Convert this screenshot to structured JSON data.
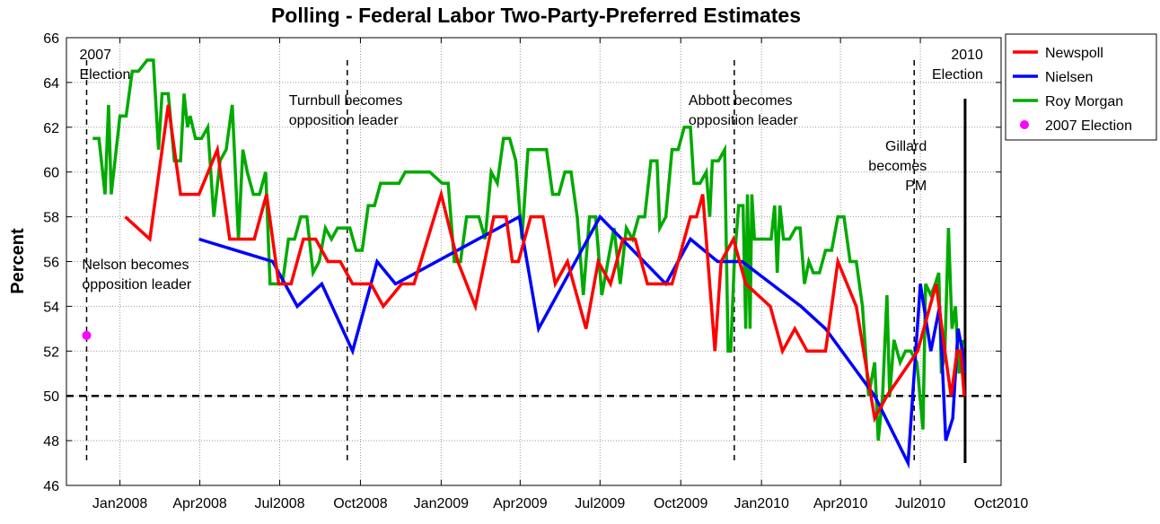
{
  "chart_data": {
    "type": "line",
    "title": "Polling - Federal Labor Two-Party-Preferred Estimates",
    "xlabel": "",
    "ylabel": "Percent",
    "xlim": [
      "2007-11-01",
      "2010-10-01"
    ],
    "ylim": [
      46,
      66
    ],
    "grid": true,
    "legend_position": "outside-top-right",
    "xticks": [
      {
        "date": "2008-01-01",
        "label": "Jan2008"
      },
      {
        "date": "2008-04-01",
        "label": "Apr2008"
      },
      {
        "date": "2008-07-01",
        "label": "Jul2008"
      },
      {
        "date": "2008-10-01",
        "label": "Oct2008"
      },
      {
        "date": "2009-01-01",
        "label": "Jan2009"
      },
      {
        "date": "2009-04-01",
        "label": "Apr2009"
      },
      {
        "date": "2009-07-01",
        "label": "Jul2009"
      },
      {
        "date": "2009-10-01",
        "label": "Oct2009"
      },
      {
        "date": "2010-01-01",
        "label": "Jan2010"
      },
      {
        "date": "2010-04-01",
        "label": "Apr2010"
      },
      {
        "date": "2010-07-01",
        "label": "Jul2010"
      },
      {
        "date": "2010-10-01",
        "label": "Oct2010"
      }
    ],
    "yticks": [
      46,
      48,
      50,
      52,
      54,
      56,
      58,
      60,
      62,
      64,
      66
    ],
    "reference_line": {
      "y": 50,
      "style": "dashed"
    },
    "colors": {
      "Newspoll": "#ff0000",
      "Nielsen": "#0000ff",
      "Roy Morgan": "#00aa00",
      "2007 Election": "#ff00ff"
    },
    "series": [
      {
        "name": "Newspoll",
        "points": [
          [
            "2008-01-07",
            58
          ],
          [
            "2008-02-04",
            57
          ],
          [
            "2008-02-25",
            63
          ],
          [
            "2008-03-10",
            59
          ],
          [
            "2008-03-31",
            59
          ],
          [
            "2008-04-21",
            61
          ],
          [
            "2008-05-05",
            57
          ],
          [
            "2008-06-02",
            57
          ],
          [
            "2008-06-16",
            59
          ],
          [
            "2008-06-30",
            55
          ],
          [
            "2008-07-14",
            55
          ],
          [
            "2008-07-28",
            57
          ],
          [
            "2008-08-11",
            57
          ],
          [
            "2008-08-25",
            56
          ],
          [
            "2008-09-08",
            56
          ],
          [
            "2008-09-22",
            55
          ],
          [
            "2008-10-13",
            55
          ],
          [
            "2008-10-27",
            54
          ],
          [
            "2008-11-17",
            55
          ],
          [
            "2008-12-01",
            55
          ],
          [
            "2009-01-01",
            59
          ],
          [
            "2009-01-20",
            56
          ],
          [
            "2009-02-09",
            54
          ],
          [
            "2009-03-02",
            58
          ],
          [
            "2009-03-16",
            58
          ],
          [
            "2009-03-23",
            56
          ],
          [
            "2009-03-30",
            56
          ],
          [
            "2009-04-13",
            58
          ],
          [
            "2009-04-27",
            58
          ],
          [
            "2009-05-11",
            55
          ],
          [
            "2009-05-25",
            56
          ],
          [
            "2009-06-15",
            53
          ],
          [
            "2009-06-29",
            56
          ],
          [
            "2009-07-13",
            55
          ],
          [
            "2009-07-27",
            57
          ],
          [
            "2009-08-10",
            57
          ],
          [
            "2009-08-24",
            55
          ],
          [
            "2009-09-14",
            55
          ],
          [
            "2009-09-21",
            55
          ],
          [
            "2009-10-12",
            58
          ],
          [
            "2009-10-19",
            58
          ],
          [
            "2009-10-26",
            59
          ],
          [
            "2009-11-09",
            52
          ],
          [
            "2009-11-16",
            56
          ],
          [
            "2009-11-30",
            57
          ],
          [
            "2009-12-14",
            55
          ],
          [
            "2010-01-11",
            54
          ],
          [
            "2010-01-25",
            52
          ],
          [
            "2010-02-08",
            53
          ],
          [
            "2010-02-22",
            52
          ],
          [
            "2010-03-15",
            52
          ],
          [
            "2010-03-29",
            56
          ],
          [
            "2010-04-19",
            54
          ],
          [
            "2010-05-10",
            49
          ],
          [
            "2010-05-24",
            50
          ],
          [
            "2010-06-28",
            52
          ],
          [
            "2010-07-19",
            55
          ],
          [
            "2010-07-29",
            52
          ],
          [
            "2010-08-05",
            50
          ],
          [
            "2010-08-12",
            52
          ],
          [
            "2010-08-16",
            52
          ],
          [
            "2010-08-20",
            50
          ]
        ]
      },
      {
        "name": "Nielsen",
        "points": [
          [
            "2008-03-31",
            57
          ],
          [
            "2008-06-23",
            56
          ],
          [
            "2008-07-21",
            54
          ],
          [
            "2008-08-18",
            55
          ],
          [
            "2008-09-22",
            52
          ],
          [
            "2008-10-20",
            56
          ],
          [
            "2008-11-10",
            55
          ],
          [
            "2009-03-31",
            58
          ],
          [
            "2009-04-22",
            53
          ],
          [
            "2009-07-01",
            58
          ],
          [
            "2009-09-14",
            55
          ],
          [
            "2009-10-12",
            57
          ],
          [
            "2009-11-12",
            56
          ],
          [
            "2009-12-10",
            56
          ],
          [
            "2010-02-15",
            54
          ],
          [
            "2010-03-15",
            53
          ],
          [
            "2010-05-10",
            50
          ],
          [
            "2010-06-17",
            47
          ],
          [
            "2010-07-01",
            55
          ],
          [
            "2010-07-13",
            52
          ],
          [
            "2010-07-23",
            54
          ],
          [
            "2010-07-30",
            48
          ],
          [
            "2010-08-07",
            49
          ],
          [
            "2010-08-13",
            53
          ],
          [
            "2010-08-18",
            52
          ],
          [
            "2010-08-20",
            51
          ]
        ]
      },
      {
        "name": "Roy Morgan",
        "points": [
          [
            "2007-12-01",
            61.5
          ],
          [
            "2007-12-08",
            61.5
          ],
          [
            "2007-12-15",
            59
          ],
          [
            "2007-12-19",
            63
          ],
          [
            "2007-12-22",
            59
          ],
          [
            "2008-01-01",
            62.5
          ],
          [
            "2008-01-08",
            62.5
          ],
          [
            "2008-01-15",
            64.5
          ],
          [
            "2008-01-22",
            64.5
          ],
          [
            "2008-02-01",
            65
          ],
          [
            "2008-02-08",
            65
          ],
          [
            "2008-02-14",
            61
          ],
          [
            "2008-02-18",
            63.5
          ],
          [
            "2008-02-25",
            63.5
          ],
          [
            "2008-03-03",
            60.5
          ],
          [
            "2008-03-10",
            60.5
          ],
          [
            "2008-03-14",
            63.5
          ],
          [
            "2008-03-18",
            62
          ],
          [
            "2008-03-21",
            62.5
          ],
          [
            "2008-03-27",
            61.5
          ],
          [
            "2008-04-03",
            61.5
          ],
          [
            "2008-04-10",
            62
          ],
          [
            "2008-04-17",
            58
          ],
          [
            "2008-04-24",
            60.5
          ],
          [
            "2008-05-01",
            61
          ],
          [
            "2008-05-08",
            63
          ],
          [
            "2008-05-15",
            57
          ],
          [
            "2008-05-20",
            61
          ],
          [
            "2008-05-25",
            60
          ],
          [
            "2008-06-01",
            59
          ],
          [
            "2008-06-08",
            59
          ],
          [
            "2008-06-15",
            60
          ],
          [
            "2008-06-20",
            55
          ],
          [
            "2008-06-27",
            55
          ],
          [
            "2008-07-04",
            55
          ],
          [
            "2008-07-11",
            57
          ],
          [
            "2008-07-18",
            57
          ],
          [
            "2008-07-25",
            58
          ],
          [
            "2008-08-01",
            58
          ],
          [
            "2008-08-08",
            55.5
          ],
          [
            "2008-08-15",
            56
          ],
          [
            "2008-08-22",
            57.5
          ],
          [
            "2008-08-29",
            57
          ],
          [
            "2008-09-05",
            57.5
          ],
          [
            "2008-09-12",
            57.5
          ],
          [
            "2008-09-19",
            57.5
          ],
          [
            "2008-09-26",
            56.5
          ],
          [
            "2008-10-03",
            56.5
          ],
          [
            "2008-10-10",
            58.5
          ],
          [
            "2008-10-17",
            58.5
          ],
          [
            "2008-10-24",
            59.5
          ],
          [
            "2008-10-31",
            59.5
          ],
          [
            "2008-11-07",
            59.5
          ],
          [
            "2008-11-14",
            59.5
          ],
          [
            "2008-11-21",
            60
          ],
          [
            "2008-11-28",
            60
          ],
          [
            "2008-12-05",
            60
          ],
          [
            "2008-12-12",
            60
          ],
          [
            "2008-12-19",
            60
          ],
          [
            "2009-01-02",
            59.5
          ],
          [
            "2009-01-09",
            59.5
          ],
          [
            "2009-01-16",
            56
          ],
          [
            "2009-01-23",
            56
          ],
          [
            "2009-01-30",
            58
          ],
          [
            "2009-02-06",
            58
          ],
          [
            "2009-02-13",
            58
          ],
          [
            "2009-02-20",
            57
          ],
          [
            "2009-02-27",
            60
          ],
          [
            "2009-03-06",
            59.5
          ],
          [
            "2009-03-13",
            61.5
          ],
          [
            "2009-03-20",
            61.5
          ],
          [
            "2009-03-27",
            60.5
          ],
          [
            "2009-04-03",
            57
          ],
          [
            "2009-04-10",
            61
          ],
          [
            "2009-04-17",
            61
          ],
          [
            "2009-04-24",
            61
          ],
          [
            "2009-05-01",
            61
          ],
          [
            "2009-05-08",
            59
          ],
          [
            "2009-05-15",
            59
          ],
          [
            "2009-05-22",
            60
          ],
          [
            "2009-05-29",
            60
          ],
          [
            "2009-06-05",
            58
          ],
          [
            "2009-06-12",
            54.5
          ],
          [
            "2009-06-19",
            58
          ],
          [
            "2009-06-26",
            58
          ],
          [
            "2009-07-03",
            54.5
          ],
          [
            "2009-07-10",
            56
          ],
          [
            "2009-07-17",
            57.5
          ],
          [
            "2009-07-24",
            55
          ],
          [
            "2009-07-31",
            57.5
          ],
          [
            "2009-08-07",
            57
          ],
          [
            "2009-08-14",
            58
          ],
          [
            "2009-08-21",
            58
          ],
          [
            "2009-08-28",
            60.5
          ],
          [
            "2009-09-04",
            60.5
          ],
          [
            "2009-09-07",
            57.5
          ],
          [
            "2009-09-14",
            58
          ],
          [
            "2009-09-21",
            61
          ],
          [
            "2009-09-28",
            61
          ],
          [
            "2009-10-05",
            62
          ],
          [
            "2009-10-12",
            62
          ],
          [
            "2009-10-16",
            59.5
          ],
          [
            "2009-10-23",
            59.5
          ],
          [
            "2009-10-30",
            60
          ],
          [
            "2009-11-03",
            58
          ],
          [
            "2009-11-06",
            60.5
          ],
          [
            "2009-11-13",
            60.5
          ],
          [
            "2009-11-20",
            61
          ],
          [
            "2009-11-24",
            52
          ],
          [
            "2009-11-27",
            52
          ],
          [
            "2009-12-01",
            56
          ],
          [
            "2009-12-06",
            58.5
          ],
          [
            "2009-12-11",
            58.5
          ],
          [
            "2009-12-14",
            53
          ],
          [
            "2009-12-16",
            59
          ],
          [
            "2009-12-19",
            53
          ],
          [
            "2009-12-21",
            59
          ],
          [
            "2009-12-24",
            57
          ],
          [
            "2010-01-01",
            57
          ],
          [
            "2010-01-08",
            57
          ],
          [
            "2010-01-12",
            57
          ],
          [
            "2010-01-16",
            58.5
          ],
          [
            "2010-01-19",
            55.5
          ],
          [
            "2010-01-22",
            58.5
          ],
          [
            "2010-01-26",
            57
          ],
          [
            "2010-01-30",
            57
          ],
          [
            "2010-02-02",
            57
          ],
          [
            "2010-02-09",
            57.5
          ],
          [
            "2010-02-14",
            57.5
          ],
          [
            "2010-02-19",
            55
          ],
          [
            "2010-02-24",
            56
          ],
          [
            "2010-03-01",
            55.5
          ],
          [
            "2010-03-08",
            55.5
          ],
          [
            "2010-03-15",
            56.5
          ],
          [
            "2010-03-22",
            56.5
          ],
          [
            "2010-03-29",
            58
          ],
          [
            "2010-04-05",
            58
          ],
          [
            "2010-04-12",
            56
          ],
          [
            "2010-04-19",
            56
          ],
          [
            "2010-04-26",
            54
          ],
          [
            "2010-05-03",
            50
          ],
          [
            "2010-05-10",
            51.5
          ],
          [
            "2010-05-14",
            48
          ],
          [
            "2010-05-19",
            50
          ],
          [
            "2010-05-24",
            54.5
          ],
          [
            "2010-05-27",
            50
          ],
          [
            "2010-06-01",
            52.5
          ],
          [
            "2010-06-08",
            51.5
          ],
          [
            "2010-06-14",
            52
          ],
          [
            "2010-06-20",
            52
          ],
          [
            "2010-06-27",
            51.5
          ],
          [
            "2010-07-04",
            48.5
          ],
          [
            "2010-07-07",
            55
          ],
          [
            "2010-07-13",
            54.5
          ],
          [
            "2010-07-18",
            55
          ],
          [
            "2010-07-22",
            55.5
          ],
          [
            "2010-07-25",
            51
          ],
          [
            "2010-07-29",
            52
          ],
          [
            "2010-08-02",
            57.5
          ],
          [
            "2010-08-06",
            53
          ],
          [
            "2010-08-10",
            54
          ],
          [
            "2010-08-14",
            51
          ],
          [
            "2010-08-18",
            52.5
          ]
        ]
      }
    ],
    "election_marker": {
      "name": "2007 Election",
      "x": "2007-11-24",
      "y": 52.7
    },
    "events": [
      {
        "x": "2007-11-24",
        "label": "2007\nElection",
        "style": "dashed"
      },
      {
        "x": "2007-11-29",
        "label": "Nelson becomes\nopposition leader",
        "style": "none"
      },
      {
        "x": "2008-09-16",
        "label": "Turnbull becomes\nopposition leader",
        "style": "dashed"
      },
      {
        "x": "2009-12-01",
        "label": "Abbott becomes\nopposition leader",
        "style": "dashed"
      },
      {
        "x": "2010-06-24",
        "label": "Gillard\nbecomes\nPM",
        "style": "dashed"
      },
      {
        "x": "2010-08-21",
        "label": "2010\nElection",
        "style": "solid"
      }
    ]
  }
}
